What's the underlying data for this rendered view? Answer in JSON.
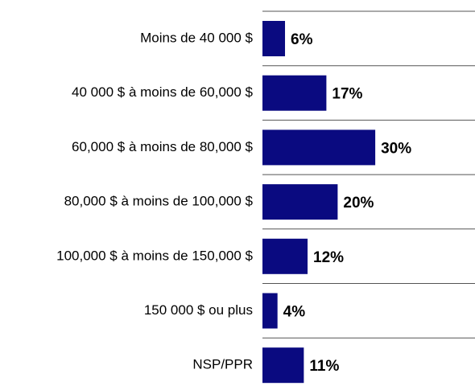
{
  "chart_data": {
    "type": "bar",
    "orientation": "horizontal",
    "categories": [
      "Moins de 40 000 $",
      "40 000 $ à moins de 60,000 $",
      "60,000 $ à moins de 80,000 $",
      "80,000 $ à moins de 100,000 $",
      "100,000 $ à moins de 150,000 $",
      "150 000 $ ou plus",
      "NSP/PPR"
    ],
    "values": [
      6,
      17,
      30,
      20,
      12,
      4,
      11
    ],
    "value_labels": [
      "6%",
      "17%",
      "30%",
      "20%",
      "12%",
      "4%",
      "11%"
    ],
    "color": "#0a0a80"
  }
}
